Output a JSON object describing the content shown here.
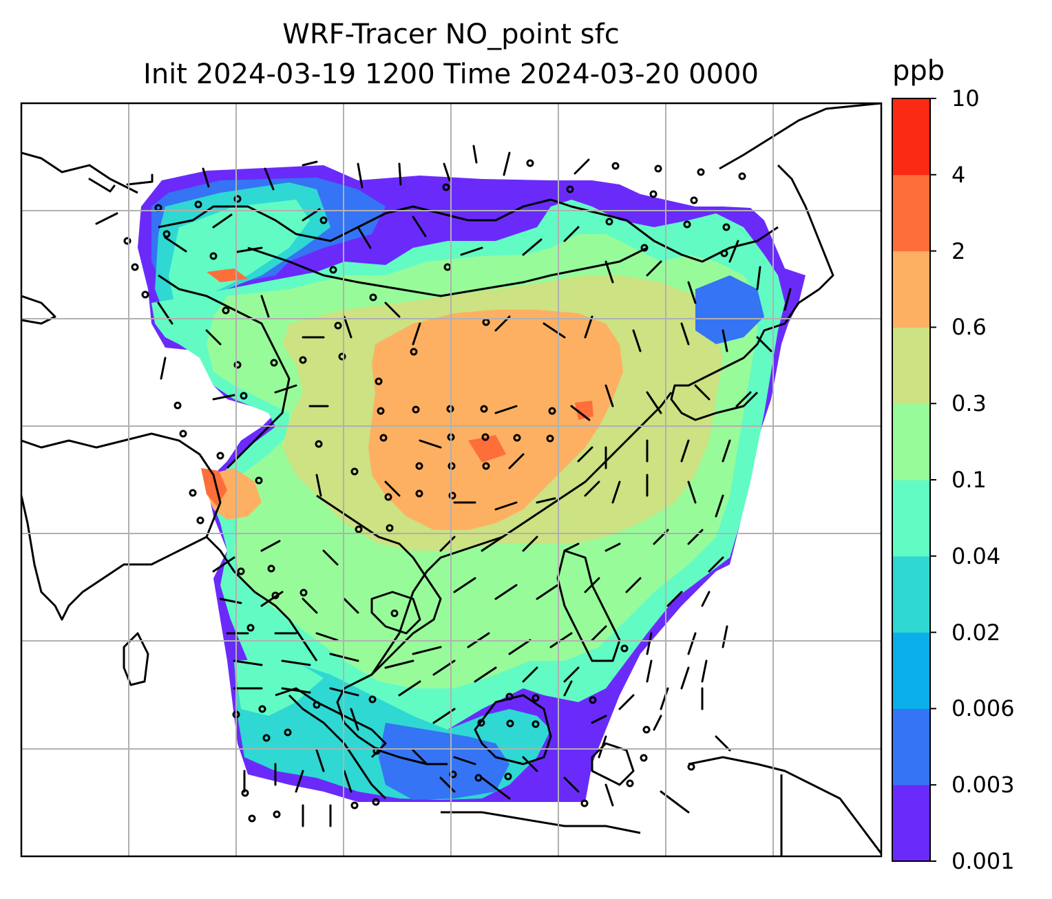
{
  "title": {
    "line1": "WRF-Tracer NO_point sfc",
    "line2": "Init 2024-03-19 1200 Time 2024-03-20 0000"
  },
  "colorbar": {
    "unit": "ppb",
    "tick_labels": [
      "0.001",
      "0.003",
      "0.006",
      "0.02",
      "0.04",
      "0.1",
      "0.3",
      "0.6",
      "2",
      "4",
      "10"
    ],
    "colors": [
      "#6a2bfa",
      "#3574f4",
      "#0aaee8",
      "#2fd8d2",
      "#62fbc4",
      "#98fb9a",
      "#cce283",
      "#fdb062",
      "#fd6e3b",
      "#fb2a15"
    ]
  },
  "map": {
    "gridlines": true,
    "overlays": [
      "coastlines",
      "country-borders",
      "wind-barbs",
      "calm-wind-circles"
    ]
  }
}
